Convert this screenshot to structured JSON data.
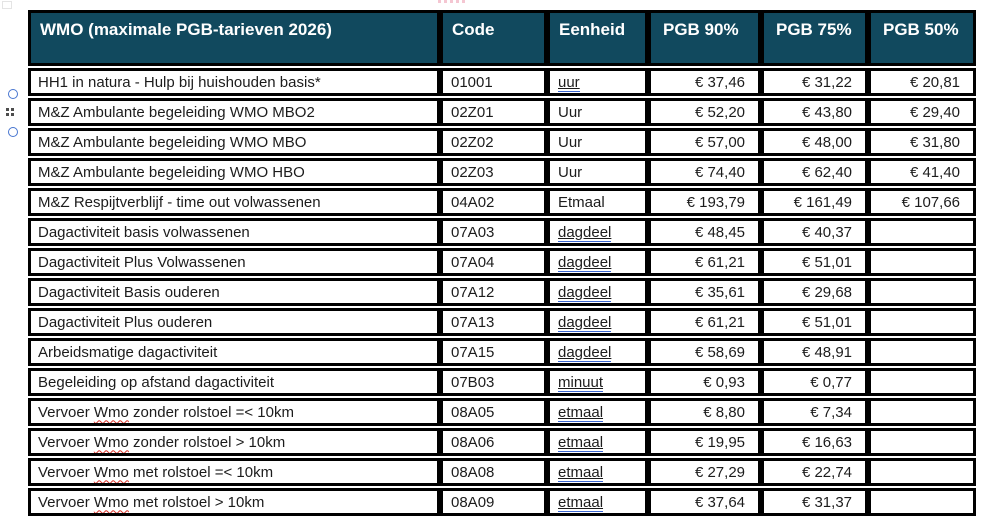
{
  "colors": {
    "header_bg": "#11495E",
    "header_text": "#FFFFFF",
    "border": "#000000",
    "link_underline": "#3A66D1",
    "spellcheck_red": "#D93025",
    "anchor_blue": "#4876D0"
  },
  "header": {
    "title": "WMO (maximale PGB-tarieven 2026)",
    "columns": [
      "Code",
      "Eenheid",
      "PGB 90%",
      "PGB 75%",
      "PGB 50%"
    ]
  },
  "table": {
    "rows": [
      {
        "description": "HH1 in natura - Hulp bij huishouden basis*",
        "code": "01001",
        "eenheid": "uur",
        "eenheid_link": true,
        "pgb90": "€ 37,46",
        "pgb75": "€ 31,22",
        "pgb50": "€ 20,81"
      },
      {
        "description": "M&Z Ambulante begeleiding WMO MBO2",
        "code": "02Z01",
        "eenheid": "Uur",
        "eenheid_link": false,
        "pgb90": "€ 52,20",
        "pgb75": "€ 43,80",
        "pgb50": "€ 29,40"
      },
      {
        "description": "M&Z Ambulante begeleiding WMO MBO",
        "code": "02Z02",
        "eenheid": "Uur",
        "eenheid_link": false,
        "pgb90": "€ 57,00",
        "pgb75": "€ 48,00",
        "pgb50": "€ 31,80"
      },
      {
        "description": "M&Z Ambulante begeleiding WMO HBO",
        "code": "02Z03",
        "eenheid": "Uur",
        "eenheid_link": false,
        "pgb90": "€ 74,40",
        "pgb75": "€ 62,40",
        "pgb50": "€ 41,40"
      },
      {
        "description": "M&Z Respijtverblijf - time out volwassenen",
        "code": "04A02",
        "eenheid": "Etmaal",
        "eenheid_link": false,
        "pgb90": "€ 193,79",
        "pgb75": "€ 161,49",
        "pgb50": "€ 107,66"
      },
      {
        "description": "Dagactiviteit basis volwassenen",
        "code": "07A03",
        "eenheid": "dagdeel",
        "eenheid_link": true,
        "pgb90": "€ 48,45",
        "pgb75": "€ 40,37",
        "pgb50": ""
      },
      {
        "description": "Dagactiviteit Plus Volwassenen",
        "code": "07A04",
        "eenheid": "dagdeel",
        "eenheid_link": true,
        "pgb90": "€ 61,21",
        "pgb75": "€ 51,01",
        "pgb50": ""
      },
      {
        "description": "Dagactiviteit Basis ouderen",
        "code": "07A12",
        "eenheid": "dagdeel",
        "eenheid_link": true,
        "pgb90": "€ 35,61",
        "pgb75": "€ 29,68",
        "pgb50": ""
      },
      {
        "description": "Dagactiviteit Plus ouderen",
        "code": "07A13",
        "eenheid": "dagdeel",
        "eenheid_link": true,
        "pgb90": "€ 61,21",
        "pgb75": "€ 51,01",
        "pgb50": ""
      },
      {
        "description": "Arbeidsmatige dagactiviteit",
        "code": "07A15",
        "eenheid": "dagdeel",
        "eenheid_link": true,
        "pgb90": "€ 58,69",
        "pgb75": "€ 48,91",
        "pgb50": ""
      },
      {
        "description": "Begeleiding op afstand dagactiviteit",
        "code": "07B03",
        "eenheid": "minuut",
        "eenheid_link": true,
        "pgb90": "€ 0,93",
        "pgb75": "€ 0,77",
        "pgb50": ""
      },
      {
        "description": "Vervoer Wmo zonder rolstoel =< 10km",
        "code": "08A05",
        "eenheid": "etmaal",
        "eenheid_link": true,
        "pgb90": "€ 8,80",
        "pgb75": "€ 7,34",
        "pgb50": "",
        "misspelled": "Wmo"
      },
      {
        "description": "Vervoer Wmo zonder rolstoel > 10km",
        "code": "08A06",
        "eenheid": "etmaal",
        "eenheid_link": true,
        "pgb90": "€ 19,95",
        "pgb75": "€ 16,63",
        "pgb50": "",
        "misspelled": "Wmo"
      },
      {
        "description": "Vervoer Wmo met rolstoel =< 10km",
        "code": "08A08",
        "eenheid": "etmaal",
        "eenheid_link": true,
        "pgb90": "€ 27,29",
        "pgb75": "€ 22,74",
        "pgb50": "",
        "misspelled": "Wmo"
      },
      {
        "description": "Vervoer Wmo met rolstoel > 10km",
        "code": "08A09",
        "eenheid": "etmaal",
        "eenheid_link": true,
        "pgb90": "€ 37,64",
        "pgb75": "€ 31,37",
        "pgb50": "",
        "misspelled": "Wmo"
      }
    ]
  },
  "margin_icons": [
    {
      "name": "anchor-circle-icon"
    },
    {
      "name": "drag-handle-icon"
    },
    {
      "name": "anchor-circle-icon"
    }
  ]
}
